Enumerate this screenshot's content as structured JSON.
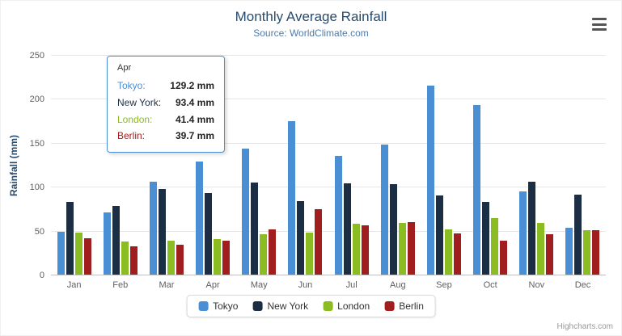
{
  "chart": {
    "title": "Monthly Average Rainfall",
    "subtitle": "Source: WorldClimate.com",
    "y_axis_title": "Rainfall (mm)",
    "credits": "Highcharts.com"
  },
  "chart_data": {
    "type": "bar",
    "title": "Monthly Average Rainfall",
    "subtitle": "Source: WorldClimate.com",
    "xlabel": "",
    "ylabel": "Rainfall (mm)",
    "ylim": [
      0,
      250
    ],
    "y_ticks": [
      0,
      50,
      100,
      150,
      200,
      250
    ],
    "grid": "horizontal",
    "legend_position": "bottom",
    "categories": [
      "Jan",
      "Feb",
      "Mar",
      "Apr",
      "May",
      "Jun",
      "Jul",
      "Aug",
      "Sep",
      "Oct",
      "Nov",
      "Dec"
    ],
    "series": [
      {
        "name": "Tokyo",
        "color": "#4A8FD3",
        "values": [
          49.9,
          71.5,
          106.4,
          129.2,
          144.0,
          176.0,
          135.6,
          148.5,
          216.4,
          194.1,
          95.6,
          54.4
        ]
      },
      {
        "name": "New York",
        "color": "#1C2E44",
        "values": [
          83.6,
          78.8,
          98.5,
          93.4,
          106.0,
          84.5,
          105.0,
          104.3,
          91.2,
          83.5,
          106.6,
          92.3
        ]
      },
      {
        "name": "London",
        "color": "#8BBC21",
        "values": [
          48.9,
          38.8,
          39.3,
          41.4,
          47.0,
          48.3,
          59.0,
          59.6,
          52.4,
          65.2,
          59.3,
          51.2
        ]
      },
      {
        "name": "Berlin",
        "color": "#A01E1E",
        "values": [
          42.4,
          33.2,
          34.5,
          39.7,
          52.6,
          75.5,
          57.4,
          60.4,
          47.6,
          39.1,
          46.8,
          51.1
        ]
      }
    ]
  },
  "tooltip": {
    "header": "Apr",
    "rows": [
      {
        "name": "Tokyo",
        "value": "129.2 mm"
      },
      {
        "name": "New York",
        "value": "93.4 mm"
      },
      {
        "name": "London",
        "value": "41.4 mm"
      },
      {
        "name": "Berlin",
        "value": "39.7 mm"
      }
    ]
  }
}
